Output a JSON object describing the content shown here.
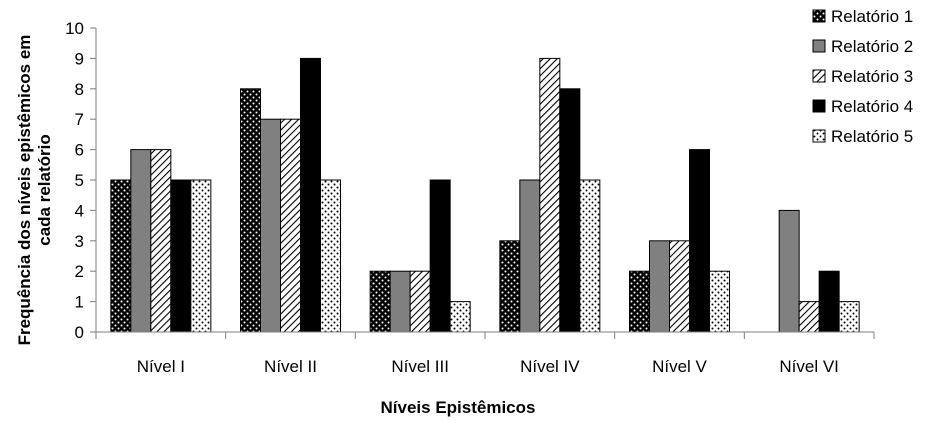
{
  "chart_data": {
    "type": "bar",
    "title": "",
    "xlabel": "Níveis Epistêmicos",
    "ylabel_lines": [
      "Frequência dos níveis epistêmicos em",
      "cada relatório"
    ],
    "categories": [
      "Nível I",
      "Nível II",
      "Nível III",
      "Nível IV",
      "Nível V",
      "Nível VI"
    ],
    "ylim": [
      0,
      10
    ],
    "yticks": [
      "0",
      "1",
      "2",
      "3",
      "4",
      "5",
      "6",
      "7",
      "8",
      "9",
      "10"
    ],
    "grid": false,
    "legend_position": "right",
    "series": [
      {
        "name": "Relatório 1",
        "pattern": "dots-black",
        "values": [
          5,
          8,
          2,
          3,
          2,
          0
        ]
      },
      {
        "name": "Relatório 2",
        "pattern": "solid-gray",
        "values": [
          6,
          7,
          2,
          5,
          3,
          4
        ]
      },
      {
        "name": "Relatório 3",
        "pattern": "diagonal-hatch",
        "values": [
          6,
          7,
          2,
          9,
          3,
          1
        ]
      },
      {
        "name": "Relatório 4",
        "pattern": "solid-black",
        "values": [
          5,
          9,
          5,
          8,
          6,
          2
        ]
      },
      {
        "name": "Relatório 5",
        "pattern": "dots-white",
        "values": [
          5,
          5,
          1,
          5,
          2,
          1
        ]
      }
    ],
    "colors": {
      "gray": "#808080",
      "black": "#000000",
      "white": "#ffffff"
    }
  }
}
